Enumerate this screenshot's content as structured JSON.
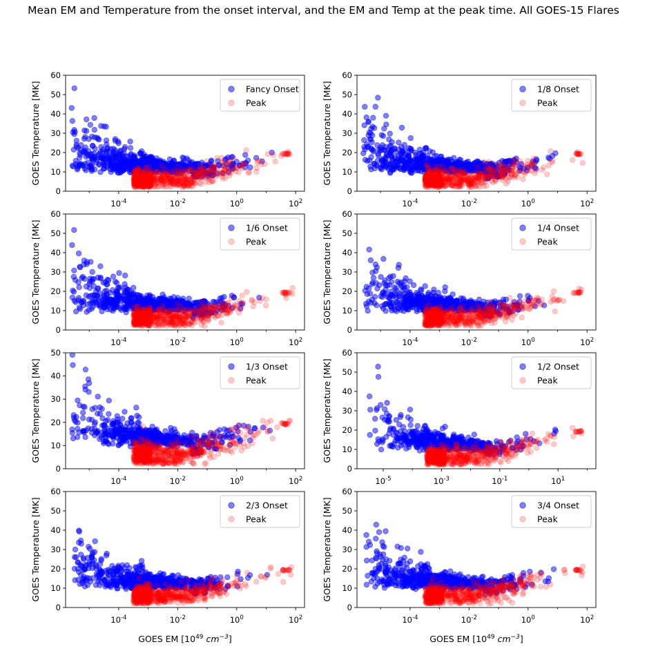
{
  "figure": {
    "suptitle": "Mean EM and Temperature from the onset interval, and the EM and Temp at the peak time. All GOES-15 Flares"
  },
  "colors": {
    "onset": "#0000ff",
    "peak": "#ff0000"
  },
  "chart_data": [
    {
      "type": "scatter",
      "xscale": "log",
      "xlim_log10": [
        -5.8,
        2.3
      ],
      "ylim": [
        0,
        60
      ],
      "xticks": [
        {
          "v": -4,
          "label": "10^-4"
        },
        {
          "v": -2,
          "label": "10^-2"
        },
        {
          "v": 0,
          "label": "10^0"
        },
        {
          "v": 2,
          "label": "10^2"
        }
      ],
      "yticks": [
        0,
        10,
        20,
        30,
        40,
        50,
        60
      ],
      "xlabel": "",
      "ylabel": "GOES Temperature [MK]",
      "legend": "top-right",
      "series": [
        {
          "name": "Fancy Onset",
          "color": "blue",
          "alpha": 0.5,
          "em_log_range": [
            -5.6,
            1.2
          ],
          "temp_max": 60,
          "n": 700
        },
        {
          "name": "Peak",
          "color": "red",
          "alpha": 0.2,
          "em_log_range": [
            -3.5,
            1.9
          ],
          "temp_band": [
            2,
            22
          ],
          "n": 650
        }
      ]
    },
    {
      "type": "scatter",
      "xscale": "log",
      "xlim_log10": [
        -5.8,
        2.3
      ],
      "ylim": [
        0,
        60
      ],
      "xticks": [
        {
          "v": -4,
          "label": "10^-4"
        },
        {
          "v": -2,
          "label": "10^-2"
        },
        {
          "v": 0,
          "label": "10^0"
        },
        {
          "v": 2,
          "label": "10^2"
        }
      ],
      "yticks": [
        0,
        10,
        20,
        30,
        40,
        50,
        60
      ],
      "xlabel": "",
      "ylabel": "GOES Temperature [MK]",
      "legend": "top-right",
      "series": [
        {
          "name": "1/8 Onset",
          "color": "blue",
          "alpha": 0.5,
          "em_log_range": [
            -5.6,
            1.2
          ],
          "temp_max": 60,
          "n": 700
        },
        {
          "name": "Peak",
          "color": "red",
          "alpha": 0.2,
          "em_log_range": [
            -3.5,
            1.9
          ],
          "temp_band": [
            2,
            22
          ],
          "n": 650
        }
      ]
    },
    {
      "type": "scatter",
      "xscale": "log",
      "xlim_log10": [
        -5.8,
        2.3
      ],
      "ylim": [
        0,
        60
      ],
      "xticks": [
        {
          "v": -4,
          "label": "10^-4"
        },
        {
          "v": -2,
          "label": "10^-2"
        },
        {
          "v": 0,
          "label": "10^0"
        },
        {
          "v": 2,
          "label": "10^2"
        }
      ],
      "yticks": [
        0,
        10,
        20,
        30,
        40,
        50,
        60
      ],
      "xlabel": "",
      "ylabel": "GOES Temperature [MK]",
      "legend": "top-right",
      "series": [
        {
          "name": "1/6 Onset",
          "color": "blue",
          "alpha": 0.5,
          "em_log_range": [
            -5.6,
            1.2
          ],
          "temp_max": 60,
          "n": 700
        },
        {
          "name": "Peak",
          "color": "red",
          "alpha": 0.2,
          "em_log_range": [
            -3.5,
            1.9
          ],
          "temp_band": [
            2,
            22
          ],
          "n": 650
        }
      ]
    },
    {
      "type": "scatter",
      "xscale": "log",
      "xlim_log10": [
        -5.8,
        2.3
      ],
      "ylim": [
        0,
        60
      ],
      "xticks": [
        {
          "v": -4,
          "label": "10^-4"
        },
        {
          "v": -2,
          "label": "10^-2"
        },
        {
          "v": 0,
          "label": "10^0"
        },
        {
          "v": 2,
          "label": "10^2"
        }
      ],
      "yticks": [
        0,
        10,
        20,
        30,
        40,
        50,
        60
      ],
      "xlabel": "",
      "ylabel": "GOES Temperature [MK]",
      "legend": "top-right",
      "series": [
        {
          "name": "1/4 Onset",
          "color": "blue",
          "alpha": 0.5,
          "em_log_range": [
            -5.6,
            1.2
          ],
          "temp_max": 60,
          "n": 600
        },
        {
          "name": "Peak",
          "color": "red",
          "alpha": 0.2,
          "em_log_range": [
            -3.5,
            1.9
          ],
          "temp_band": [
            2,
            22
          ],
          "n": 650
        }
      ]
    },
    {
      "type": "scatter",
      "xscale": "log",
      "xlim_log10": [
        -5.8,
        2.3
      ],
      "ylim": [
        0,
        50
      ],
      "xticks": [
        {
          "v": -4,
          "label": "10^-4"
        },
        {
          "v": -2,
          "label": "10^-2"
        },
        {
          "v": 0,
          "label": "10^0"
        },
        {
          "v": 2,
          "label": "10^2"
        }
      ],
      "yticks": [
        0,
        10,
        20,
        30,
        40,
        50
      ],
      "xlabel": "",
      "ylabel": "GOES Temperature [MK]",
      "legend": "top-right",
      "series": [
        {
          "name": "1/3 Onset",
          "color": "blue",
          "alpha": 0.5,
          "em_log_range": [
            -5.6,
            1.2
          ],
          "temp_max": 50,
          "n": 600
        },
        {
          "name": "Peak",
          "color": "red",
          "alpha": 0.2,
          "em_log_range": [
            -3.5,
            1.9
          ],
          "temp_band": [
            2,
            22
          ],
          "n": 650
        }
      ]
    },
    {
      "type": "scatter",
      "xscale": "log",
      "xlim_log10": [
        -5.9,
        2.3
      ],
      "ylim": [
        0,
        60
      ],
      "xticks": [
        {
          "v": -5,
          "label": "10^-5"
        },
        {
          "v": -3,
          "label": "10^-3"
        },
        {
          "v": -1,
          "label": "10^-1"
        },
        {
          "v": 1,
          "label": "10^1"
        }
      ],
      "yticks": [
        0,
        10,
        20,
        30,
        40,
        50,
        60
      ],
      "xlabel": "",
      "ylabel": "GOES Temperature [MK]",
      "legend": "top-right",
      "series": [
        {
          "name": "1/2 Onset",
          "color": "blue",
          "alpha": 0.5,
          "em_log_range": [
            -5.5,
            1.2
          ],
          "temp_max": 56,
          "n": 500
        },
        {
          "name": "Peak",
          "color": "red",
          "alpha": 0.2,
          "em_log_range": [
            -3.5,
            1.9
          ],
          "temp_band": [
            2,
            22
          ],
          "n": 650
        }
      ]
    },
    {
      "type": "scatter",
      "xscale": "log",
      "xlim_log10": [
        -5.8,
        2.3
      ],
      "ylim": [
        0,
        60
      ],
      "xticks": [
        {
          "v": -4,
          "label": "10^-4"
        },
        {
          "v": -2,
          "label": "10^-2"
        },
        {
          "v": 0,
          "label": "10^0"
        },
        {
          "v": 2,
          "label": "10^2"
        }
      ],
      "yticks": [
        0,
        10,
        20,
        30,
        40,
        50,
        60
      ],
      "xlabel": "GOES EM [10^49 cm^-3]",
      "ylabel": "GOES Temperature [MK]",
      "legend": "top-right",
      "series": [
        {
          "name": "2/3 Onset",
          "color": "blue",
          "alpha": 0.5,
          "em_log_range": [
            -5.5,
            1.2
          ],
          "temp_max": 56,
          "n": 600
        },
        {
          "name": "Peak",
          "color": "red",
          "alpha": 0.2,
          "em_log_range": [
            -3.5,
            1.9
          ],
          "temp_band": [
            2,
            22
          ],
          "n": 650
        }
      ]
    },
    {
      "type": "scatter",
      "xscale": "log",
      "xlim_log10": [
        -5.8,
        2.3
      ],
      "ylim": [
        0,
        60
      ],
      "xticks": [
        {
          "v": -4,
          "label": "10^-4"
        },
        {
          "v": -2,
          "label": "10^-2"
        },
        {
          "v": 0,
          "label": "10^0"
        },
        {
          "v": 2,
          "label": "10^2"
        }
      ],
      "yticks": [
        0,
        10,
        20,
        30,
        40,
        50,
        60
      ],
      "xlabel": "GOES EM [10^49 cm^-3]",
      "ylabel": "GOES Temperature [MK]",
      "legend": "top-right",
      "series": [
        {
          "name": "3/4 Onset",
          "color": "blue",
          "alpha": 0.5,
          "em_log_range": [
            -5.5,
            1.2
          ],
          "temp_max": 56,
          "n": 600
        },
        {
          "name": "Peak",
          "color": "red",
          "alpha": 0.2,
          "em_log_range": [
            -3.5,
            1.9
          ],
          "temp_band": [
            2,
            22
          ],
          "n": 650
        }
      ]
    }
  ]
}
